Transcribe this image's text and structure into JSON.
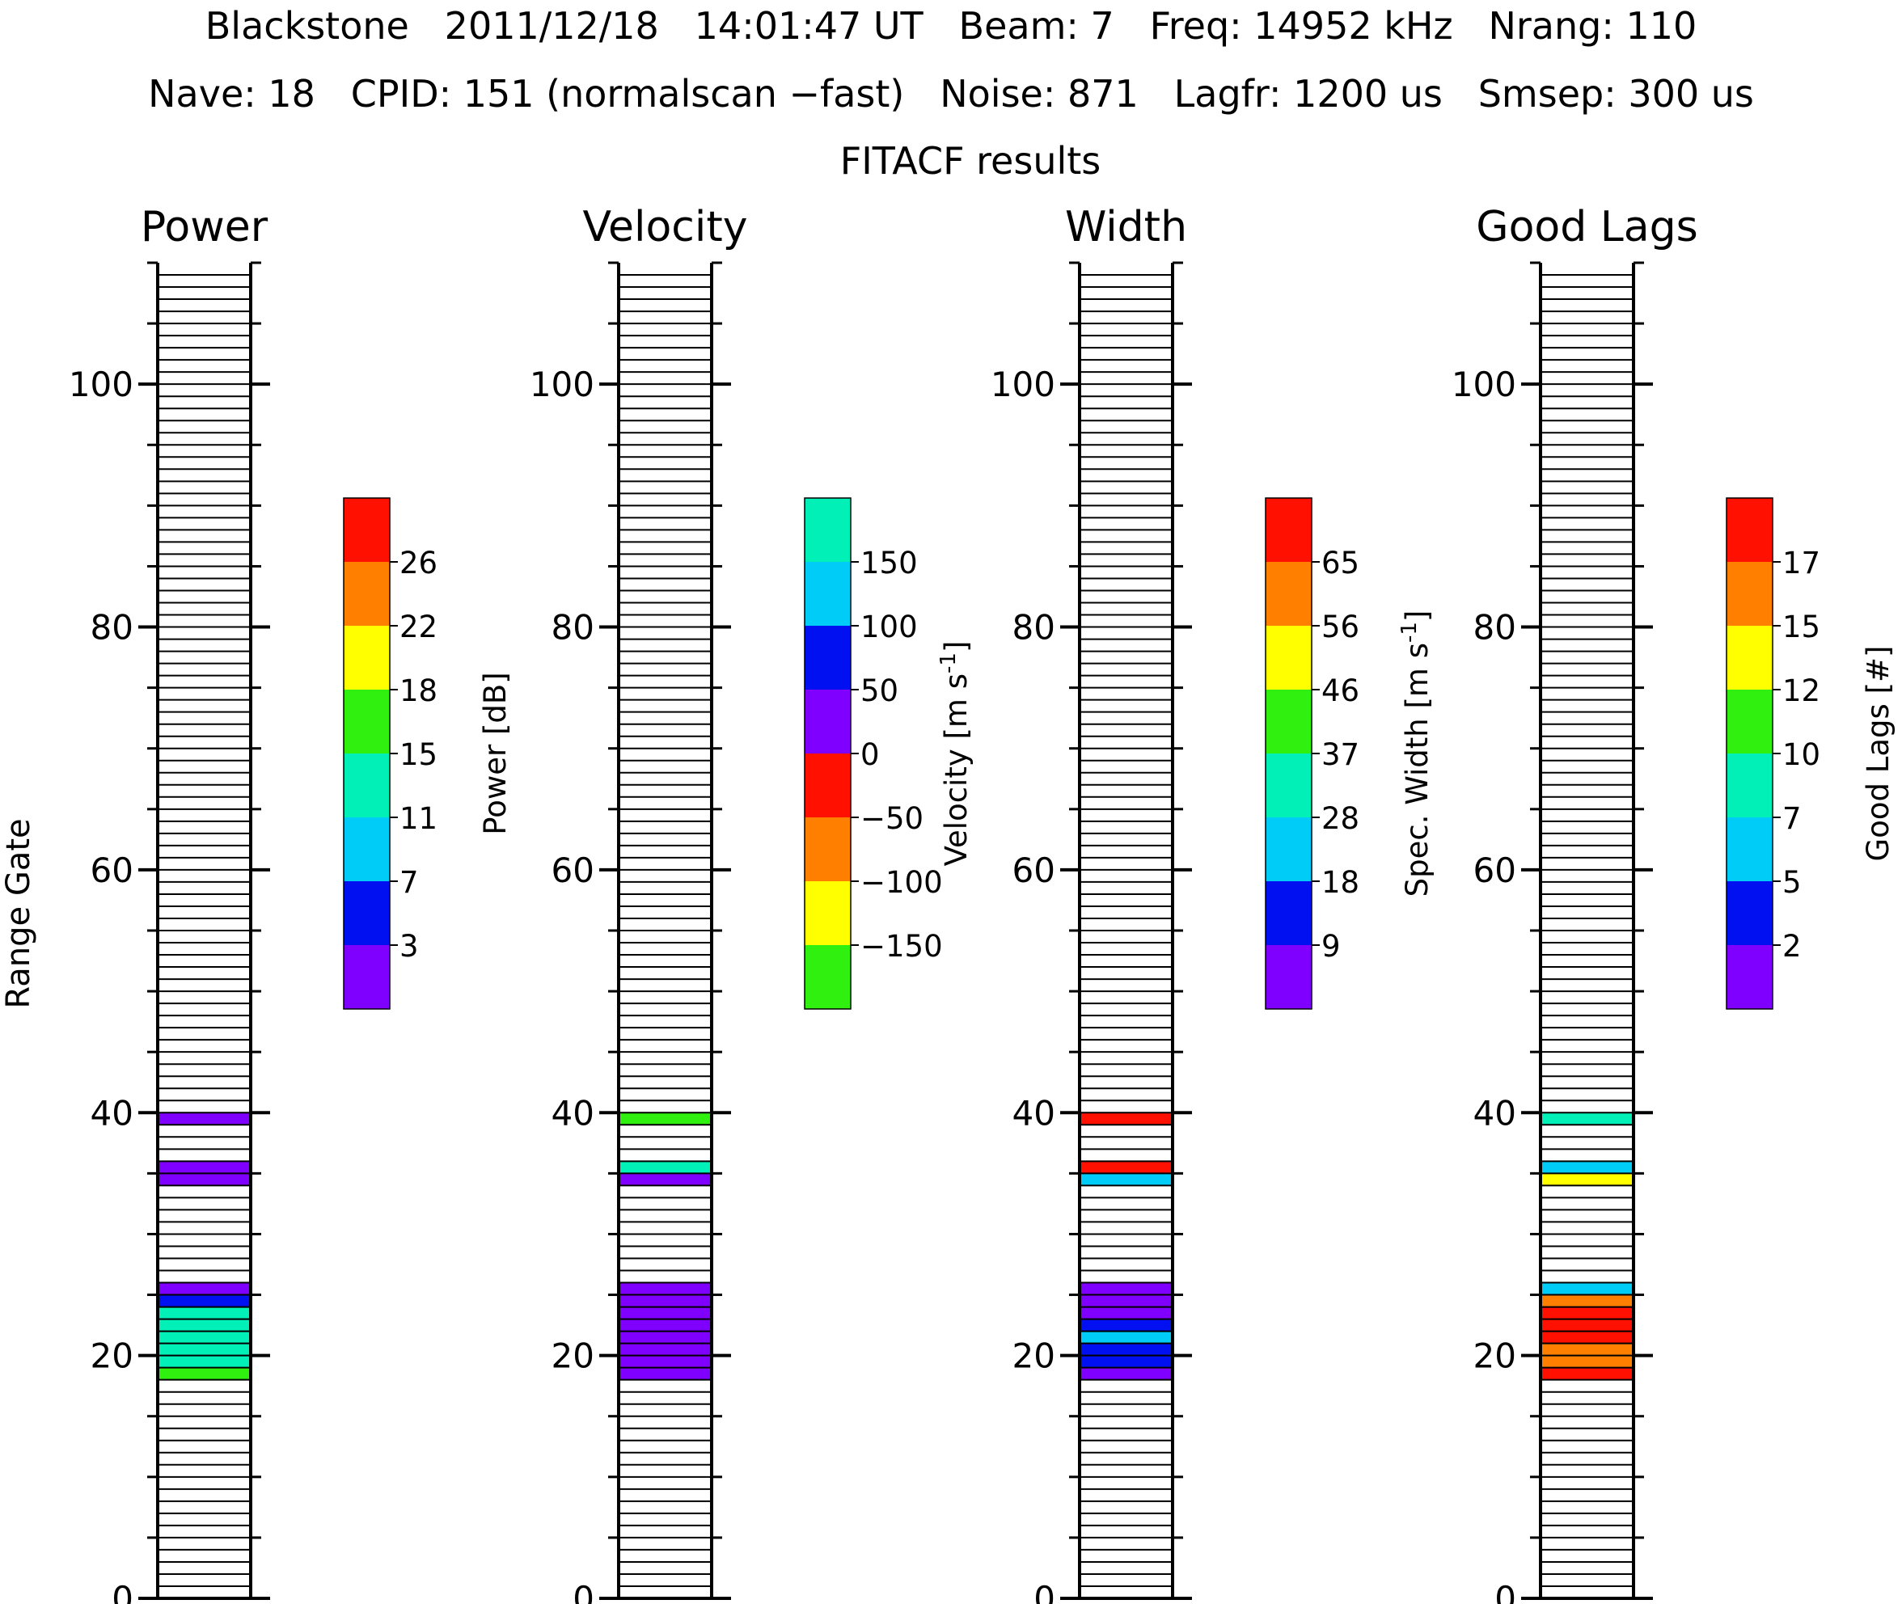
{
  "header": {
    "line1": "Blackstone   2011/12/18   14:01:47 UT   Beam: 7   Freq: 14952 kHz   Nrang: 110",
    "line2": "Nave: 18   CPID: 151 (normalscan −fast)   Noise: 871   Lagfr: 1200 us   Smsep: 300 us",
    "line3": "FITACF results"
  },
  "y_axis_label": "Range Gate",
  "chart_data": [
    {
      "type": "heatmap",
      "title": "Power",
      "ylabel": "Range Gate",
      "ylim": [
        0,
        110
      ],
      "yticks": [
        0,
        20,
        40,
        60,
        80,
        100
      ],
      "colorbar": {
        "label": "Power [dB]",
        "colors": [
          "#8000ff",
          "#0010f0",
          "#00ccf8",
          "#00f0b8",
          "#30f010",
          "#ffff00",
          "#ff8000",
          "#ff1000"
        ],
        "tick_labels": [
          "3",
          "7",
          "11",
          "15",
          "18",
          "22",
          "26"
        ]
      },
      "cells": [
        {
          "gate": 18,
          "color_index": 4
        },
        {
          "gate": 19,
          "color_index": 3
        },
        {
          "gate": 20,
          "color_index": 3
        },
        {
          "gate": 21,
          "color_index": 3
        },
        {
          "gate": 22,
          "color_index": 3
        },
        {
          "gate": 23,
          "color_index": 3
        },
        {
          "gate": 24,
          "color_index": 1
        },
        {
          "gate": 25,
          "color_index": 0
        },
        {
          "gate": 34,
          "color_index": 0
        },
        {
          "gate": 35,
          "color_index": 0
        },
        {
          "gate": 39,
          "color_index": 0
        }
      ]
    },
    {
      "type": "heatmap",
      "title": "Velocity",
      "ylim": [
        0,
        110
      ],
      "yticks": [
        0,
        20,
        40,
        60,
        80,
        100
      ],
      "colorbar": {
        "label": "Velocity [m s",
        "label_sup": "-1",
        "label_end": "]",
        "colors": [
          "#30f010",
          "#ffff00",
          "#ff8000",
          "#ff1000",
          "#8000ff",
          "#0010f0",
          "#00ccf8",
          "#00f0b8"
        ],
        "tick_labels": [
          "−150",
          "−100",
          "−50",
          "0",
          "50",
          "100",
          "150"
        ]
      },
      "cells": [
        {
          "gate": 18,
          "color_index": 4
        },
        {
          "gate": 19,
          "color_index": 4
        },
        {
          "gate": 20,
          "color_index": 4
        },
        {
          "gate": 21,
          "color_index": 4
        },
        {
          "gate": 22,
          "color_index": 4
        },
        {
          "gate": 23,
          "color_index": 4
        },
        {
          "gate": 24,
          "color_index": 4
        },
        {
          "gate": 25,
          "color_index": 4
        },
        {
          "gate": 34,
          "color_index": 4
        },
        {
          "gate": 35,
          "color_index": 7
        },
        {
          "gate": 39,
          "color_index": 0
        }
      ]
    },
    {
      "type": "heatmap",
      "title": "Width",
      "ylim": [
        0,
        110
      ],
      "yticks": [
        0,
        20,
        40,
        60,
        80,
        100
      ],
      "colorbar": {
        "label": "Spec. Width [m s",
        "label_sup": "-1",
        "label_end": "]",
        "colors": [
          "#8000ff",
          "#0010f0",
          "#00ccf8",
          "#00f0b8",
          "#30f010",
          "#ffff00",
          "#ff8000",
          "#ff1000"
        ],
        "tick_labels": [
          "9",
          "18",
          "28",
          "37",
          "46",
          "56",
          "65"
        ]
      },
      "cells": [
        {
          "gate": 18,
          "color_index": 0
        },
        {
          "gate": 19,
          "color_index": 1
        },
        {
          "gate": 20,
          "color_index": 1
        },
        {
          "gate": 21,
          "color_index": 2
        },
        {
          "gate": 22,
          "color_index": 1
        },
        {
          "gate": 23,
          "color_index": 0
        },
        {
          "gate": 24,
          "color_index": 0
        },
        {
          "gate": 25,
          "color_index": 0
        },
        {
          "gate": 34,
          "color_index": 2
        },
        {
          "gate": 35,
          "color_index": 7
        },
        {
          "gate": 39,
          "color_index": 7
        }
      ]
    },
    {
      "type": "heatmap",
      "title": "Good Lags",
      "ylim": [
        0,
        110
      ],
      "yticks": [
        0,
        20,
        40,
        60,
        80,
        100
      ],
      "colorbar": {
        "label": "Good Lags [#]",
        "colors": [
          "#8000ff",
          "#0010f0",
          "#00ccf8",
          "#00f0b8",
          "#30f010",
          "#ffff00",
          "#ff8000",
          "#ff1000"
        ],
        "tick_labels": [
          "2",
          "5",
          "7",
          "10",
          "12",
          "15",
          "17"
        ]
      },
      "cells": [
        {
          "gate": 18,
          "color_index": 7
        },
        {
          "gate": 19,
          "color_index": 6
        },
        {
          "gate": 20,
          "color_index": 6
        },
        {
          "gate": 21,
          "color_index": 7
        },
        {
          "gate": 22,
          "color_index": 7
        },
        {
          "gate": 23,
          "color_index": 7
        },
        {
          "gate": 24,
          "color_index": 6
        },
        {
          "gate": 25,
          "color_index": 2
        },
        {
          "gate": 34,
          "color_index": 5
        },
        {
          "gate": 35,
          "color_index": 2
        },
        {
          "gate": 39,
          "color_index": 3
        }
      ]
    }
  ]
}
